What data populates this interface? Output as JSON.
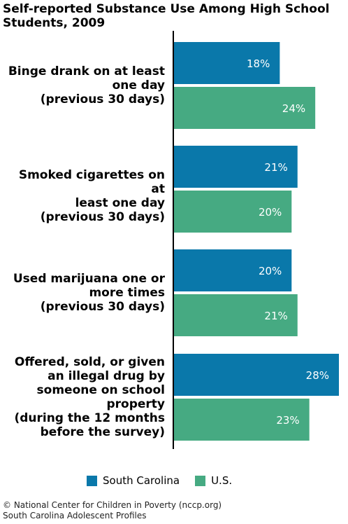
{
  "chart_data": {
    "type": "bar",
    "orientation": "horizontal",
    "title": "Self-reported Substance Use Among High School\nStudents, 2009",
    "categories": [
      "Binge drank on at least one day (previous 30 days)",
      "Smoked cigarettes on at least one day (previous 30 days)",
      "Used marijuana one or more times (previous 30 days)",
      "Offered, sold, or given an illegal drug by someone on school property (during the 12 months before the survey)"
    ],
    "series": [
      {
        "name": "South Carolina",
        "color": "#0a78aa",
        "values": [
          18,
          21,
          20,
          28
        ],
        "labels": [
          "18%",
          "21%",
          "20%",
          "28%"
        ]
      },
      {
        "name": "U.S.",
        "color": "#46aa82",
        "values": [
          24,
          20,
          21,
          23
        ],
        "labels": [
          "24%",
          "20%",
          "21%",
          "23%"
        ]
      }
    ],
    "xlim": [
      0,
      28
    ],
    "grid": false,
    "legend": "bottom"
  },
  "category_lines": [
    [
      "Binge drank on at least",
      "one day",
      "(previous 30 days)"
    ],
    [
      "Smoked cigarettes on at",
      "least one day",
      "(previous 30 days)"
    ],
    [
      "Used marijuana one or",
      "more times",
      "(previous 30 days)"
    ],
    [
      "Offered, sold, or given",
      "an illegal drug by",
      "someone on school",
      "property",
      "(during the 12 months",
      "before the survey)"
    ]
  ],
  "footer": {
    "line1": "© National Center for Children in Poverty (nccp.org)",
    "line2": "South Carolina Adolescent Profiles"
  }
}
